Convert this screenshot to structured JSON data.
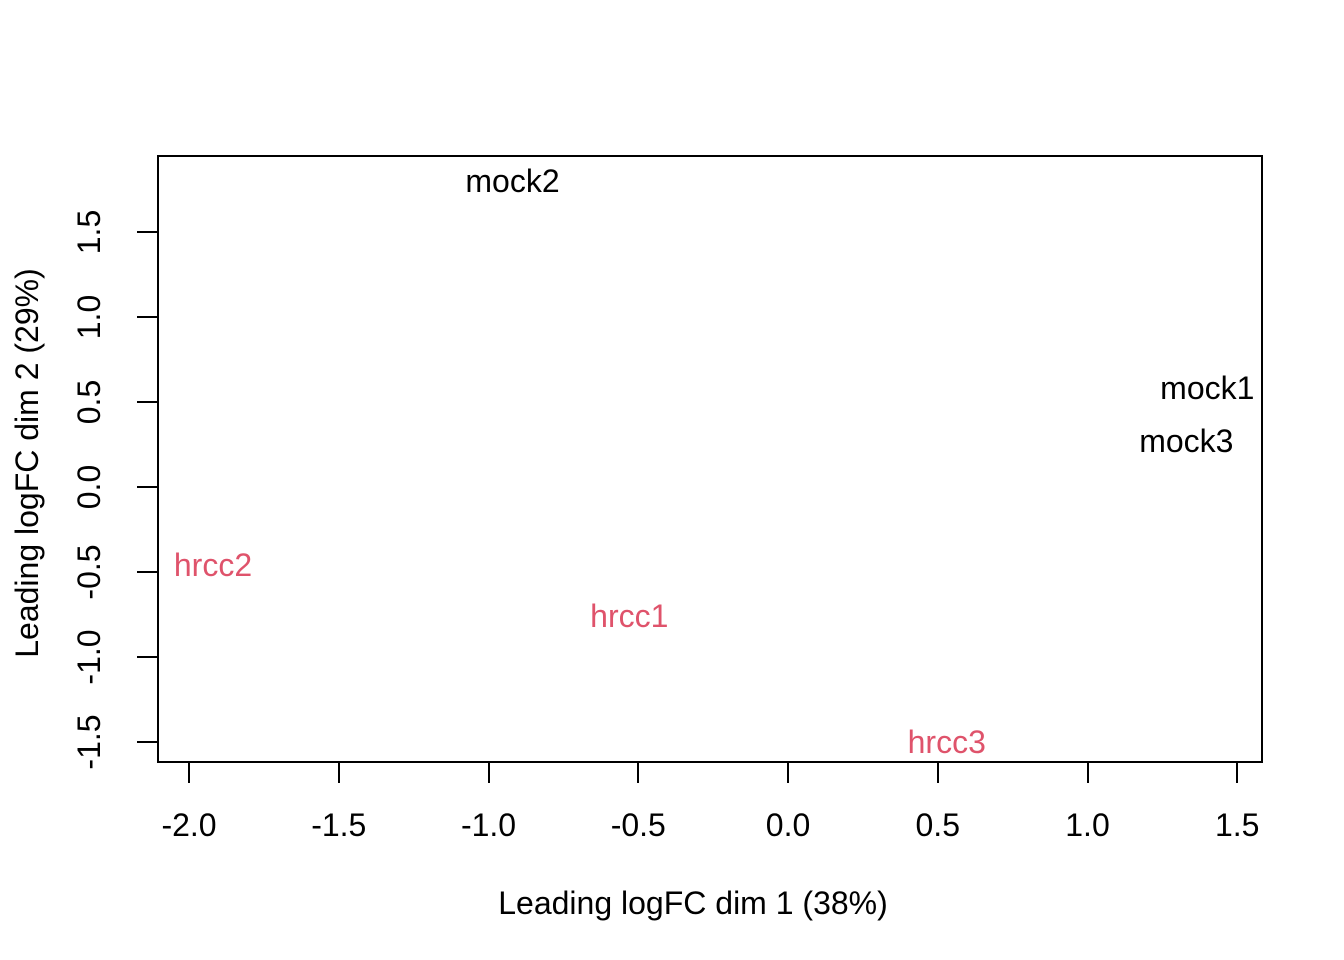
{
  "chart_data": {
    "type": "scatter",
    "subtype": "mds-plot-text-labels",
    "title": "",
    "xlabel": "Leading logFC dim 1 (38%)",
    "ylabel": "Leading logFC dim 2 (29%)",
    "xlim": [
      -2.107,
      1.586
    ],
    "ylim": [
      -1.624,
      1.953
    ],
    "grid": false,
    "legend": "none",
    "x_ticks": [
      -2.0,
      -1.5,
      -1.0,
      -0.5,
      0.0,
      0.5,
      1.0,
      1.5
    ],
    "x_tick_labels": [
      "-2.0",
      "-1.5",
      "-1.0",
      "-0.5",
      "0.0",
      "0.5",
      "1.0",
      "1.5"
    ],
    "y_ticks": [
      1.5,
      1.0,
      0.5,
      0.0,
      -0.5,
      -1.0,
      -1.5
    ],
    "y_tick_labels": [
      "1.5",
      "1.0",
      "0.5",
      "0.0",
      "-0.5",
      "-1.0",
      "-1.5"
    ],
    "series": [
      {
        "name": "mock",
        "color": "#000000",
        "points": [
          {
            "label": "mock2",
            "x": -0.92,
            "y": 1.8
          },
          {
            "label": "mock1",
            "x": 1.4,
            "y": 0.58
          },
          {
            "label": "mock3",
            "x": 1.33,
            "y": 0.27
          }
        ]
      },
      {
        "name": "hrcc",
        "color": "#DF536B",
        "points": [
          {
            "label": "hrcc2",
            "x": -1.92,
            "y": -0.46
          },
          {
            "label": "hrcc1",
            "x": -0.53,
            "y": -0.76
          },
          {
            "label": "hrcc3",
            "x": 0.53,
            "y": -1.5
          }
        ]
      }
    ]
  },
  "colors": {
    "background": "#FFFFFF",
    "axis": "#000000",
    "mock_group": "#000000",
    "hrcc_group": "#DF536B"
  }
}
